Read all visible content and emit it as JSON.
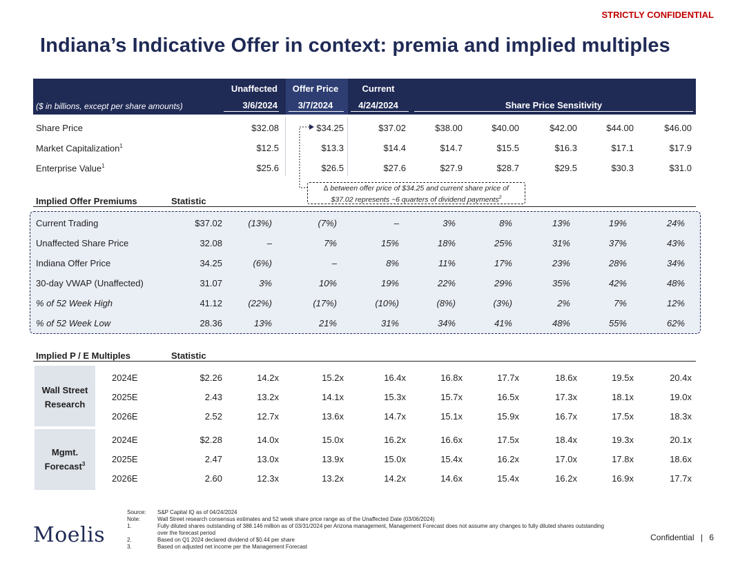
{
  "confidential_top": "STRICTLY CONFIDENTIAL",
  "title": "Indiana’s Indicative Offer in context: premia and implied multiples",
  "header": {
    "units_note": "($ in billions, except per share amounts)",
    "col_unaffected": "Unaffected",
    "col_unaffected_date": "3/6/2024",
    "col_offer": "Offer Price",
    "col_offer_date": "3/7/2024",
    "col_current": "Current",
    "col_current_date": "4/24/2024",
    "sensitivity": "Share Price Sensitivity"
  },
  "top_rows": [
    {
      "label": "Share Price",
      "sup": "",
      "values": [
        "$32.08",
        "$34.25",
        "$37.02",
        "$38.00",
        "$40.00",
        "$42.00",
        "$44.00",
        "$46.00"
      ]
    },
    {
      "label": "Market Capitalization",
      "sup": "1",
      "values": [
        "$12.5",
        "$13.3",
        "$14.4",
        "$14.7",
        "$15.5",
        "$16.3",
        "$17.1",
        "$17.9"
      ]
    },
    {
      "label": "Enterprise Value",
      "sup": "1",
      "values": [
        "$25.6",
        "$26.5",
        "$27.6",
        "$27.9",
        "$28.7",
        "$29.5",
        "$30.3",
        "$31.0"
      ]
    }
  ],
  "callout": {
    "line1": "∆ between offer price of $34.25 and current share price of",
    "line2": "$37.02 represents ~6 quarters of dividend payments",
    "sup": "2"
  },
  "premiums": {
    "heading": "Implied Offer Premiums",
    "stat_heading": "Statistic",
    "rows": [
      {
        "label": "Current Trading",
        "italic": false,
        "stat": "$37.02",
        "values": [
          "(13%)",
          "(7%)",
          "–",
          "3%",
          "8%",
          "13%",
          "19%",
          "24%"
        ]
      },
      {
        "label": "Unaffected Share Price",
        "italic": false,
        "stat": "32.08",
        "values": [
          "–",
          "7%",
          "15%",
          "18%",
          "25%",
          "31%",
          "37%",
          "43%"
        ]
      },
      {
        "label": "Indiana Offer Price",
        "italic": false,
        "stat": "34.25",
        "values": [
          "(6%)",
          "–",
          "8%",
          "11%",
          "17%",
          "23%",
          "28%",
          "34%"
        ]
      },
      {
        "label": "30-day VWAP (Unaffected)",
        "italic": false,
        "stat": "31.07",
        "values": [
          "3%",
          "10%",
          "19%",
          "22%",
          "29%",
          "35%",
          "42%",
          "48%"
        ]
      },
      {
        "label": "% of 52 Week High",
        "italic": true,
        "stat": "41.12",
        "values": [
          "(22%)",
          "(17%)",
          "(10%)",
          "(8%)",
          "(3%)",
          "2%",
          "7%",
          "12%"
        ]
      },
      {
        "label": "% of 52 Week Low",
        "italic": true,
        "stat": "28.36",
        "values": [
          "13%",
          "21%",
          "31%",
          "34%",
          "41%",
          "48%",
          "55%",
          "62%"
        ]
      }
    ]
  },
  "multiples": {
    "heading": "Implied P / E Multiples",
    "stat_heading": "Statistic",
    "groups": [
      {
        "label_line1": "Wall Street",
        "label_line2": "Research",
        "sup": "",
        "rows": [
          {
            "year": "2024E",
            "stat": "$2.26",
            "values": [
              "14.2x",
              "15.2x",
              "16.4x",
              "16.8x",
              "17.7x",
              "18.6x",
              "19.5x",
              "20.4x"
            ]
          },
          {
            "year": "2025E",
            "stat": "2.43",
            "values": [
              "13.2x",
              "14.1x",
              "15.3x",
              "15.7x",
              "16.5x",
              "17.3x",
              "18.1x",
              "19.0x"
            ]
          },
          {
            "year": "2026E",
            "stat": "2.52",
            "values": [
              "12.7x",
              "13.6x",
              "14.7x",
              "15.1x",
              "15.9x",
              "16.7x",
              "17.5x",
              "18.3x"
            ]
          }
        ]
      },
      {
        "label_line1": "Mgmt.",
        "label_line2": "Forecast",
        "sup": "3",
        "rows": [
          {
            "year": "2024E",
            "stat": "$2.28",
            "values": [
              "14.0x",
              "15.0x",
              "16.2x",
              "16.6x",
              "17.5x",
              "18.4x",
              "19.3x",
              "20.1x"
            ]
          },
          {
            "year": "2025E",
            "stat": "2.47",
            "values": [
              "13.0x",
              "13.9x",
              "15.0x",
              "15.4x",
              "16.2x",
              "17.0x",
              "17.8x",
              "18.6x"
            ]
          },
          {
            "year": "2026E",
            "stat": "2.60",
            "values": [
              "12.3x",
              "13.2x",
              "14.2x",
              "14.6x",
              "15.4x",
              "16.2x",
              "16.9x",
              "17.7x"
            ]
          }
        ]
      }
    ]
  },
  "footnotes": [
    {
      "key": "Source:",
      "text": "S&P Capital IQ as of 04/24/2024"
    },
    {
      "key": "Note:",
      "text": "Wall Street research consensus estimates and 52 week share price range as of the Unaffected Date (03/06/2024)"
    },
    {
      "key": "1.",
      "text": "Fully diluted shares outstanding of 388.146 million as of 03/31/2024 per Arizona management, Management Forecast does not assume any changes to fully diluted shares outstanding over the forecast period"
    },
    {
      "key": "2.",
      "text": "Based on Q1 2024 declared dividend of $0.44 per share"
    },
    {
      "key": "3.",
      "text": "Based on adjusted net income per the Management Forecast"
    }
  ],
  "logo": "Moelis",
  "footer": {
    "confidential": "Confidential",
    "separator": "|",
    "page": "6"
  },
  "colors": {
    "navy": "#1f2a55",
    "red": "#c00000",
    "light_blue": "#eaeef5",
    "grey_box": "#dfe3ea"
  }
}
